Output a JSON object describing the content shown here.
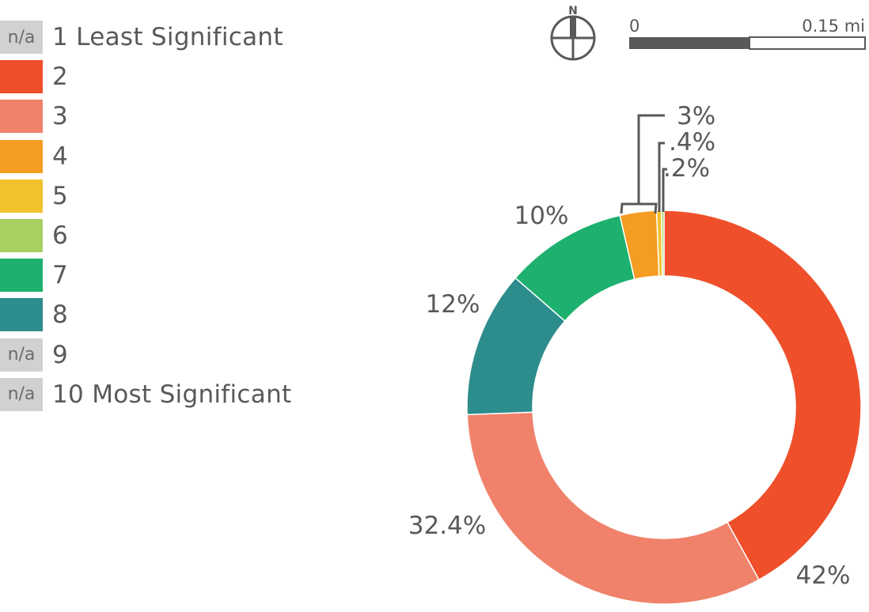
{
  "legend": {
    "items": [
      {
        "swatch_text": "n/a",
        "label": "1 Least Significant",
        "color": "#d1d1d1"
      },
      {
        "swatch_text": "",
        "label": "2",
        "color": "#ef4f2a"
      },
      {
        "swatch_text": "",
        "label": "3",
        "color": "#f0826b"
      },
      {
        "swatch_text": "",
        "label": "4",
        "color": "#f59c22"
      },
      {
        "swatch_text": "",
        "label": "5",
        "color": "#f2c12e"
      },
      {
        "swatch_text": "",
        "label": "6",
        "color": "#a8cf62"
      },
      {
        "swatch_text": "",
        "label": "7",
        "color": "#1db06f"
      },
      {
        "swatch_text": "",
        "label": "8",
        "color": "#2d8c8c"
      },
      {
        "swatch_text": "n/a",
        "label": "9",
        "color": "#d1d1d1"
      },
      {
        "swatch_text": "n/a",
        "label": "10 Most Significant",
        "color": "#d1d1d1"
      }
    ]
  },
  "map_elements": {
    "north_label": "N",
    "scale_start": "0",
    "scale_end": "0.15 mi"
  },
  "chart_data": {
    "type": "pie",
    "variant": "donut",
    "slices": [
      {
        "category": "2",
        "value": 42,
        "label": "42%",
        "color": "#ef4f2a"
      },
      {
        "category": "3",
        "value": 32.4,
        "label": "32.4%",
        "color": "#f0826b"
      },
      {
        "category": "8",
        "value": 12,
        "label": "12%",
        "color": "#2d8c8c"
      },
      {
        "category": "7",
        "value": 10,
        "label": "10%",
        "color": "#1db06f"
      },
      {
        "category": "4",
        "value": 3,
        "label": "3%",
        "color": "#f59c22"
      },
      {
        "category": "5",
        "value": 0.4,
        "label": ".4%",
        "color": "#f2c12e"
      },
      {
        "category": "6",
        "value": 0.2,
        "label": ".2%",
        "color": "#a8cf62"
      }
    ],
    "start": "top",
    "direction": "clockwise"
  }
}
